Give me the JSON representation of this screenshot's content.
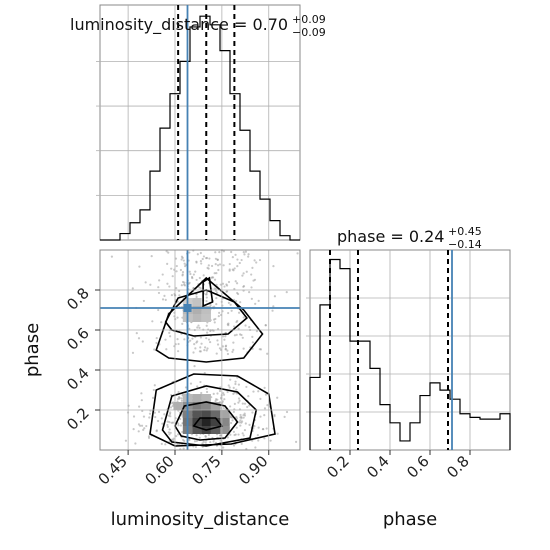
{
  "chart_data": {
    "type": "corner",
    "params": [
      "luminosity_distance",
      "phase"
    ],
    "truths": {
      "luminosity_distance": 0.64,
      "phase": 0.71
    },
    "ranges": {
      "luminosity_distance": [
        0.36,
        1.0
      ],
      "phase": [
        0.0,
        1.0
      ]
    },
    "grid": true,
    "color_truth": "#4682b4",
    "titles": {
      "luminosity_distance": {
        "prefix": "luminosity_distance = ",
        "median": "0.70",
        "plus": "+0.09",
        "minus": "−0.09"
      },
      "phase": {
        "prefix": "phase = ",
        "median": "0.24",
        "plus": "+0.45",
        "minus": "−0.14"
      }
    },
    "quantiles": {
      "luminosity_distance": [
        0.61,
        0.7,
        0.79
      ],
      "phase": [
        0.1,
        0.24,
        0.69
      ]
    },
    "xlabels": {
      "luminosity_distance": "luminosity_distance",
      "phase": "phase"
    },
    "ylabel_2d": "phase",
    "ticks": {
      "luminosity_distance": {
        "values": [
          0.45,
          0.6,
          0.75,
          0.9
        ],
        "labels": [
          "0.45",
          "0.60",
          "0.75",
          "0.90"
        ]
      },
      "phase_x": {
        "values": [
          0.2,
          0.4,
          0.6,
          0.8
        ],
        "labels": [
          "0.2",
          "0.4",
          "0.6",
          "0.8"
        ]
      },
      "phase_y": {
        "values": [
          0.2,
          0.4,
          0.6,
          0.8
        ],
        "labels": [
          "0.2",
          "0.4",
          "0.6",
          "0.8"
        ]
      }
    },
    "hist_luminosity_distance": {
      "bin_edges": [
        0.36,
        0.392,
        0.424,
        0.456,
        0.488,
        0.52,
        0.552,
        0.584,
        0.616,
        0.648,
        0.68,
        0.712,
        0.744,
        0.776,
        0.808,
        0.84,
        0.872,
        0.904,
        0.936,
        0.968,
        1.0
      ],
      "values": [
        0,
        0,
        3,
        8,
        14,
        32,
        52,
        68,
        83,
        99,
        104,
        100,
        88,
        68,
        51,
        32,
        19,
        9,
        2,
        0
      ]
    },
    "hist_phase": {
      "bin_edges": [
        0.0,
        0.05,
        0.1,
        0.15,
        0.2,
        0.25,
        0.3,
        0.35,
        0.4,
        0.45,
        0.5,
        0.55,
        0.6,
        0.65,
        0.7,
        0.75,
        0.8,
        0.85,
        0.9,
        0.95,
        1.0
      ],
      "values": [
        40,
        80,
        105,
        100,
        60,
        60,
        45,
        25,
        15,
        5,
        15,
        30,
        37,
        33,
        28,
        20,
        18,
        17,
        17,
        20
      ]
    }
  }
}
